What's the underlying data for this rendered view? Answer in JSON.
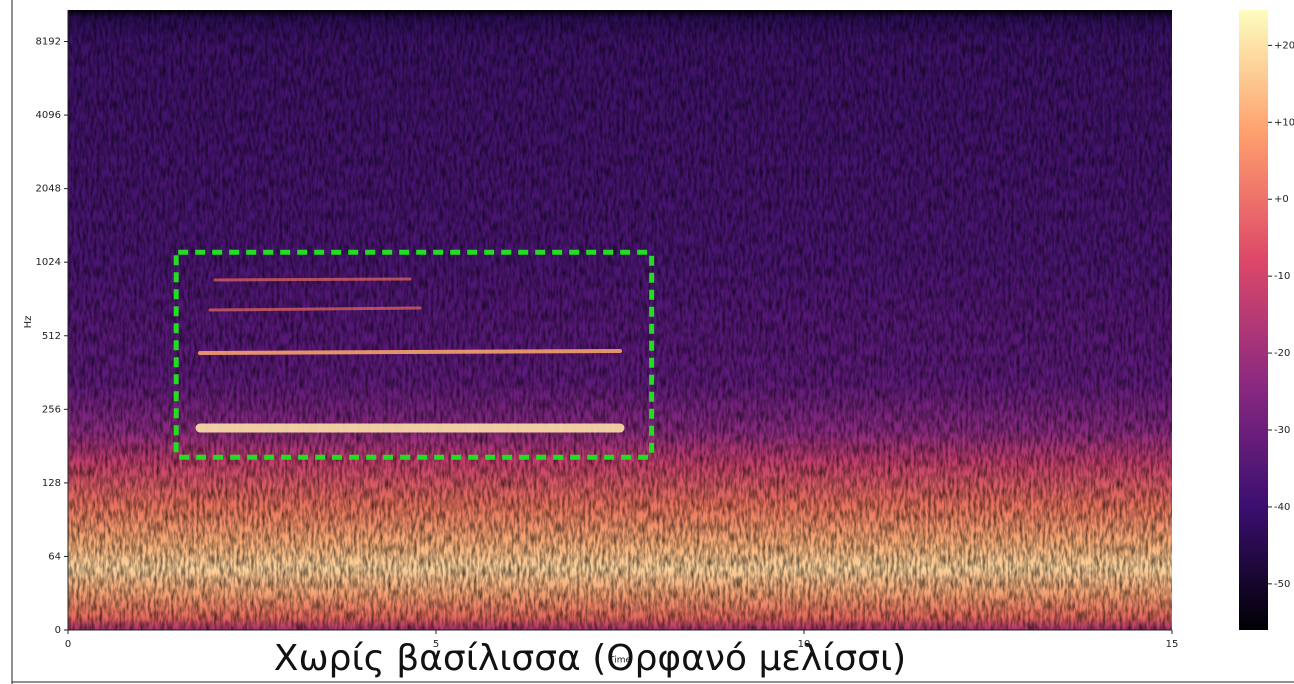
{
  "chart_data": {
    "type": "heatmap",
    "caption": "Χωρίς βασίλισσα (Ορφανό μελίσσι)",
    "xlabel": "Time",
    "ylabel": "Hz",
    "xlim": [
      0,
      15
    ],
    "xticks": [
      0,
      5,
      10,
      15
    ],
    "ylim": [
      0,
      11025
    ],
    "yscale": "symlog",
    "linthresh": 64,
    "yticks": [
      0,
      64,
      128,
      256,
      512,
      1024,
      2048,
      4096,
      8192
    ],
    "colormap": "magma",
    "clim": [
      -56,
      24.6
    ],
    "cticks": [
      {
        "value": 20,
        "label": "+20"
      },
      {
        "value": 10,
        "label": "+10"
      },
      {
        "value": 0,
        "label": "+0"
      },
      -10,
      -20,
      -30,
      -40,
      -50
    ],
    "highlight": {
      "x": [
        1.47,
        7.93
      ],
      "y": [
        163,
        1124
      ],
      "color": "#22dd22"
    }
  }
}
